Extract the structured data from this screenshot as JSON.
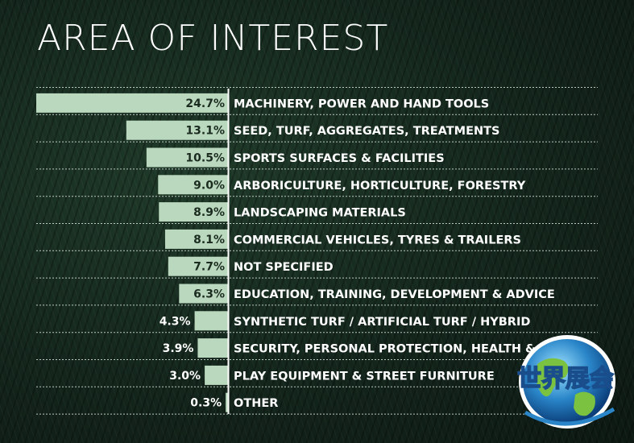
{
  "chart_data": {
    "type": "bar",
    "orientation": "horizontal",
    "title": "AREA OF INTEREST",
    "categories": [
      "MACHINERY, POWER AND HAND TOOLS",
      "SEED, TURF, AGGREGATES, TREATMENTS",
      "SPORTS SURFACES & FACILITIES",
      "ARBORICULTURE, HORTICULTURE, FORESTRY",
      "LANDSCAPING MATERIALS",
      "COMMERCIAL VEHICLES, TYRES & TRAILERS",
      "NOT SPECIFIED",
      "EDUCATION, TRAINING, DEVELOPMENT & ADVICE",
      "SYNTHETIC TURF / ARTIFICIAL TURF / HYBRID",
      "SECURITY, PERSONAL PROTECTION, HEALTH & SAFETY",
      "PLAY EQUIPMENT & STREET FURNITURE",
      "OTHER"
    ],
    "values": [
      24.7,
      13.1,
      10.5,
      9.0,
      8.9,
      8.1,
      7.7,
      6.3,
      4.3,
      3.9,
      3.0,
      0.3
    ],
    "value_labels": [
      "24.7%",
      "13.1%",
      "10.5%",
      "9.0%",
      "8.9%",
      "8.1%",
      "7.7%",
      "6.3%",
      "4.3%",
      "3.9%",
      "3.0%",
      "0.3%"
    ],
    "unit": "%",
    "grid": false,
    "colors": {
      "bar": "#b9d8bd",
      "text": "#ffffff",
      "background": "#13241b"
    }
  },
  "watermark": {
    "text": "世界展会"
  }
}
